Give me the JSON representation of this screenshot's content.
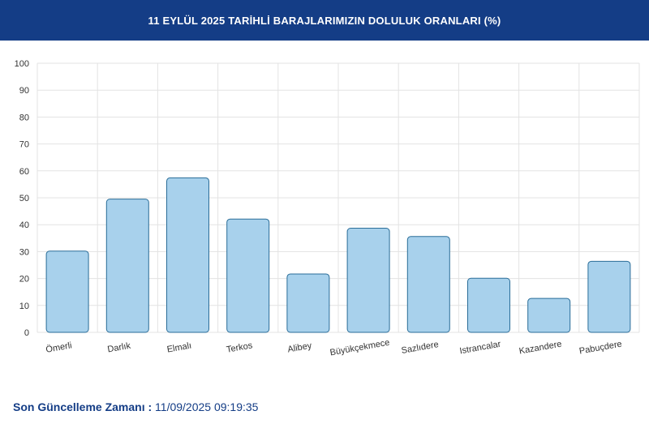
{
  "header": {
    "title": "11 EYLÜL 2025 TARİHLİ BARAJLARIMIZIN DOLULUK ORANLARI (%)"
  },
  "colors": {
    "header_bg": "#143d86",
    "bar_fill": "#a8d1ec",
    "bar_stroke": "#2a6d98",
    "grid": "#e3e3e3",
    "footer_text": "#143d86"
  },
  "chart_data": {
    "type": "bar",
    "title": "",
    "xlabel": "",
    "ylabel": "",
    "ylim": [
      0,
      100
    ],
    "yticks": [
      0,
      10,
      20,
      30,
      40,
      50,
      60,
      70,
      80,
      90,
      100
    ],
    "grid": true,
    "categories": [
      "Ömerli",
      "Darlık",
      "Elmalı",
      "Terkos",
      "Alibey",
      "Büyükçekmece",
      "Sazlıdere",
      "Istrancalar",
      "Kazandere",
      "Pabuçdere"
    ],
    "values": [
      30.2,
      49.5,
      57.4,
      42.1,
      21.7,
      38.7,
      35.6,
      20.1,
      12.6,
      26.4
    ]
  },
  "footer": {
    "label": "Son Güncelleme Zamanı :",
    "value": "11/09/2025 09:19:35"
  }
}
